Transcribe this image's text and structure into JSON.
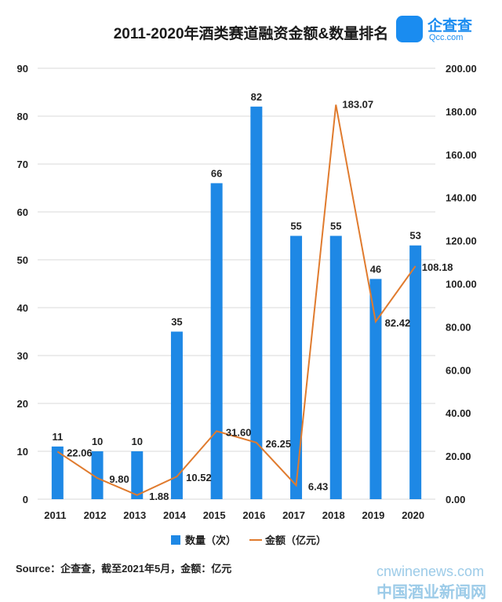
{
  "title": "2011-2020年酒类赛道融资金额&数量排名",
  "logo": {
    "name_cn": "企查查",
    "name_en": "Qcc.com"
  },
  "footer": "Source：企查查，截至2021年5月，金额：亿元",
  "site": {
    "domain": "cnwinenews.com",
    "name_cn": "中国酒业新闻网"
  },
  "colors": {
    "bar": "#1e88e5",
    "line": "#e07b2e",
    "grid": "#d9d9d9"
  },
  "chart_data": {
    "type": "bar",
    "categories": [
      "2011",
      "2012",
      "2013",
      "2014",
      "2015",
      "2016",
      "2017",
      "2018",
      "2019",
      "2020"
    ],
    "series": [
      {
        "name": "数量（次）",
        "type": "bar",
        "axis": "left",
        "values": [
          11,
          10,
          10,
          35,
          66,
          82,
          55,
          55,
          46,
          53
        ]
      },
      {
        "name": "金额（亿元）",
        "type": "line",
        "axis": "right",
        "values": [
          22.06,
          9.8,
          1.88,
          10.52,
          31.6,
          26.25,
          6.43,
          183.07,
          82.42,
          108.18
        ]
      }
    ],
    "left_axis": {
      "min": 0,
      "max": 90,
      "step": 10,
      "ticks": [
        "0",
        "10",
        "20",
        "30",
        "40",
        "50",
        "60",
        "70",
        "80",
        "90"
      ]
    },
    "right_axis": {
      "min": 0,
      "max": 200,
      "step": 20,
      "ticks": [
        "0.00",
        "20.00",
        "40.00",
        "60.00",
        "80.00",
        "100.00",
        "120.00",
        "140.00",
        "160.00",
        "180.00",
        "200.00"
      ]
    },
    "bar_labels": [
      "11",
      "10",
      "10",
      "35",
      "66",
      "82",
      "55",
      "55",
      "46",
      "53"
    ],
    "line_labels": [
      "22.06",
      "9.80",
      "1.88",
      "10.52",
      "31.60",
      "26.25",
      "6.43",
      "183.07",
      "82.42",
      "108.18"
    ],
    "grid": true,
    "legend_position": "bottom"
  }
}
